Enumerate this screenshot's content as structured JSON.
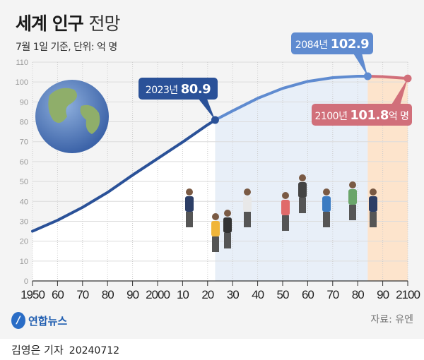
{
  "title": {
    "main": "세계 인구",
    "sub": "전망"
  },
  "subtitle": "7월 1일 기준, 단위: 억 명",
  "source": "자료: 유엔",
  "logo": "연합뉴스",
  "byline": {
    "author": "김영은 기자",
    "date": "20240712"
  },
  "colors": {
    "past": "#2a5198",
    "projection": "#5f8bd0",
    "late": "#d16f7a",
    "projection_bg": "#e8eff8",
    "late_bg": "#fde4cc"
  },
  "chart_data": {
    "type": "line",
    "ylim": [
      0,
      110
    ],
    "yticks": [
      0,
      10,
      20,
      30,
      40,
      50,
      60,
      70,
      80,
      90,
      100,
      110
    ],
    "xlim": [
      1950,
      2100
    ],
    "xticks": [
      1950,
      1960,
      1970,
      1980,
      1990,
      2000,
      2010,
      2020,
      2030,
      2040,
      2050,
      2060,
      2070,
      2080,
      2090,
      2100
    ],
    "xtick_labels": [
      "1950",
      "60",
      "70",
      "80",
      "90",
      "2000",
      "10",
      "20",
      "30",
      "40",
      "50",
      "60",
      "70",
      "80",
      "90",
      "2100"
    ],
    "x": [
      1950,
      1960,
      1970,
      1980,
      1990,
      2000,
      2010,
      2020,
      2023,
      2030,
      2040,
      2050,
      2060,
      2070,
      2080,
      2084,
      2090,
      2100
    ],
    "y": [
      25.0,
      30.5,
      37.0,
      44.5,
      53.2,
      61.5,
      69.8,
      78.5,
      80.9,
      85.5,
      91.8,
      96.8,
      100.3,
      102.2,
      102.9,
      102.9,
      102.7,
      101.8
    ],
    "annotations": [
      {
        "year_label": "2023년",
        "value": "80.9",
        "unit": "",
        "x": 2023,
        "y": 80.9
      },
      {
        "year_label": "2084년",
        "value": "102.9",
        "unit": "",
        "x": 2084,
        "y": 102.9
      },
      {
        "year_label": "2100년",
        "value": "101.8",
        "unit": "억 명",
        "x": 2100,
        "y": 101.8
      }
    ]
  }
}
